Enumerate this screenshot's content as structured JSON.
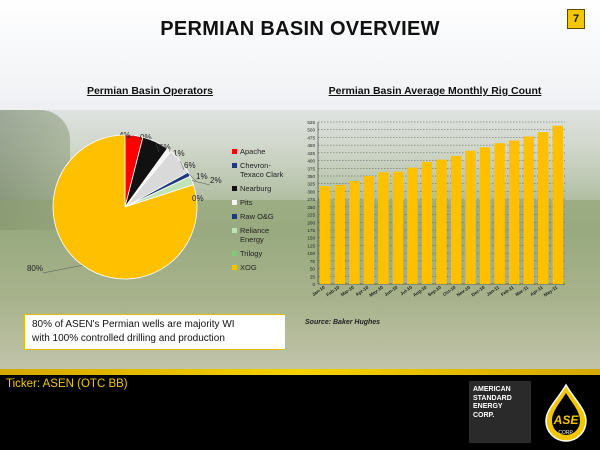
{
  "page": {
    "title": "PERMIAN BASIN OVERVIEW",
    "page_number": "7"
  },
  "pie_section": {
    "title": "Permian Basin Operators"
  },
  "bar_section": {
    "title": "Permian Basin Average Monthly Rig Count",
    "source": "Source: Baker Hughes"
  },
  "callout": {
    "line1": "80% of ASEN's Permian wells are majority WI",
    "line2": "with 100% controlled drilling and production"
  },
  "footer": {
    "ticker": "Ticker: ASEN (OTC BB)",
    "company_lines": [
      "AMERICAN",
      "STANDARD",
      "ENERGY",
      "CORP."
    ],
    "logo_text": "ASE",
    "logo_sub": "CORP.",
    "icon": "oil-drop-logo-icon"
  },
  "colors": {
    "accent": "#f2c700",
    "pie_xog": "#ffc000",
    "footer_bg": "#000000"
  },
  "chart_data": [
    {
      "type": "pie",
      "title": "Permian Basin Operators",
      "slices": [
        {
          "name": "Apache",
          "value": 4,
          "label": "4%",
          "color": "#ff0000"
        },
        {
          "name": "Chevron-Texaco Clark",
          "value": 0,
          "label": "0%",
          "color": "#e8e8e8"
        },
        {
          "name": "Nearburg",
          "value": 6,
          "label": "6%",
          "color": "#111111"
        },
        {
          "name": "Pits",
          "value": 1,
          "label": "1%",
          "color": "#f4f4f4"
        },
        {
          "name": "Raw O&G",
          "value": 6,
          "label": "6%",
          "color": "#d9d9d9"
        },
        {
          "name": "Reliance Energy",
          "value": 1,
          "label": "1%",
          "color": "#1f3a7a"
        },
        {
          "name": "Trilogy",
          "value": 2,
          "label": "2%",
          "color": "#bfe3b4"
        },
        {
          "name": "XOG",
          "value": 80,
          "label": "80%",
          "color": "#ffc000"
        }
      ],
      "extra_labels": [
        "0%"
      ],
      "legend": [
        {
          "label": "Apache",
          "color": "#ff0000"
        },
        {
          "label": "Chevron-Texaco Clark",
          "color": "#1f3a7a"
        },
        {
          "label": "Nearburg",
          "color": "#111111"
        },
        {
          "label": "Pits",
          "color": "#f4f4f4"
        },
        {
          "label": "Raw O&G",
          "color": "#1f3a7a"
        },
        {
          "label": "Reliance Energy",
          "color": "#bfe3b4"
        },
        {
          "label": "Trilogy",
          "color": "#7fc97f"
        },
        {
          "label": "XOG",
          "color": "#ffc000"
        }
      ],
      "legend_position": "right"
    },
    {
      "type": "bar",
      "title": "Permian Basin Average Monthly Rig Count",
      "categories": [
        "Jan-10",
        "Feb-10",
        "Mar-10",
        "Apr-10",
        "May-10",
        "Jun-10",
        "Jul-10",
        "Aug-10",
        "Sep-10",
        "Oct-10",
        "Nov-10",
        "Dec-10",
        "Jan-11",
        "Feb-11",
        "Mar-11",
        "Apr-11",
        "May-11"
      ],
      "values": [
        317,
        321,
        334,
        350,
        362,
        364,
        377,
        396,
        403,
        415,
        432,
        443,
        456,
        465,
        478,
        492,
        513
      ],
      "ylim": [
        0,
        525
      ],
      "yticks": [
        0,
        25,
        50,
        75,
        100,
        125,
        150,
        175,
        200,
        225,
        250,
        275,
        300,
        325,
        350,
        375,
        400,
        425,
        450,
        475,
        500,
        525
      ],
      "color": "#ffc000",
      "grid": true
    }
  ]
}
